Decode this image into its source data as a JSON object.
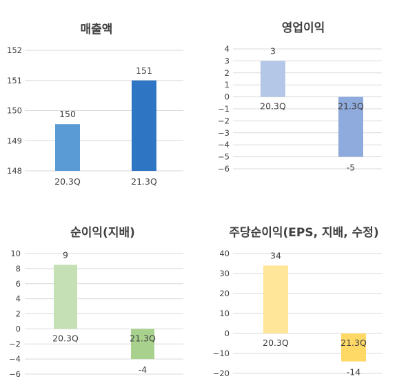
{
  "chart_data": [
    {
      "type": "bar",
      "title": "매출액",
      "categories": [
        "20.3Q",
        "21.3Q"
      ],
      "values": [
        149.55,
        151
      ],
      "data_labels": [
        "150",
        "151"
      ],
      "ylim": [
        148,
        152
      ],
      "yticks": [
        148,
        149,
        150,
        151,
        152
      ],
      "ytick_labels": [
        "148",
        "149",
        "150",
        "151",
        "152"
      ],
      "colors": [
        "#5b9bd5",
        "#2e75c4"
      ],
      "grid": true,
      "legend": "none"
    },
    {
      "type": "bar",
      "title": "영업이익",
      "categories": [
        "20.3Q",
        "21.3Q"
      ],
      "values": [
        3,
        -5
      ],
      "data_labels": [
        "3",
        "-5"
      ],
      "ylim": [
        -6,
        4
      ],
      "yticks": [
        4,
        3,
        2,
        1,
        0,
        -1,
        -2,
        -3,
        -4,
        -5,
        -6
      ],
      "ytick_labels": [
        "4",
        "3",
        "2",
        "1",
        "0",
        "−1",
        "−2",
        "−3",
        "−4",
        "−5",
        "−6"
      ],
      "colors": [
        "#b4c7e7",
        "#8faadc"
      ],
      "grid": true,
      "legend": "none"
    },
    {
      "type": "bar",
      "title": "순이익(지배)",
      "categories": [
        "20.3Q",
        "21.3Q"
      ],
      "values": [
        8.5,
        -4
      ],
      "data_labels": [
        "9",
        "-4"
      ],
      "ylim": [
        -6,
        10
      ],
      "yticks": [
        10,
        8,
        6,
        4,
        2,
        0,
        -2,
        -4,
        -6
      ],
      "ytick_labels": [
        "10",
        "8",
        "6",
        "4",
        "2",
        "0",
        "−2",
        "−4",
        "−6"
      ],
      "colors": [
        "#c5e0b4",
        "#a9d18e"
      ],
      "grid": true,
      "legend": "none"
    },
    {
      "type": "bar",
      "title": "주당순이익(EPS, 지배, 수정)",
      "categories": [
        "20.3Q",
        "21.3Q"
      ],
      "values": [
        34,
        -14
      ],
      "data_labels": [
        "34",
        "-14"
      ],
      "ylim": [
        -20,
        40
      ],
      "yticks": [
        40,
        30,
        20,
        10,
        0,
        -10,
        -20
      ],
      "ytick_labels": [
        "40",
        "30",
        "20",
        "10",
        "0",
        "−10",
        "−20"
      ],
      "colors": [
        "#ffe699",
        "#ffd966"
      ],
      "grid": true,
      "legend": "none"
    }
  ]
}
